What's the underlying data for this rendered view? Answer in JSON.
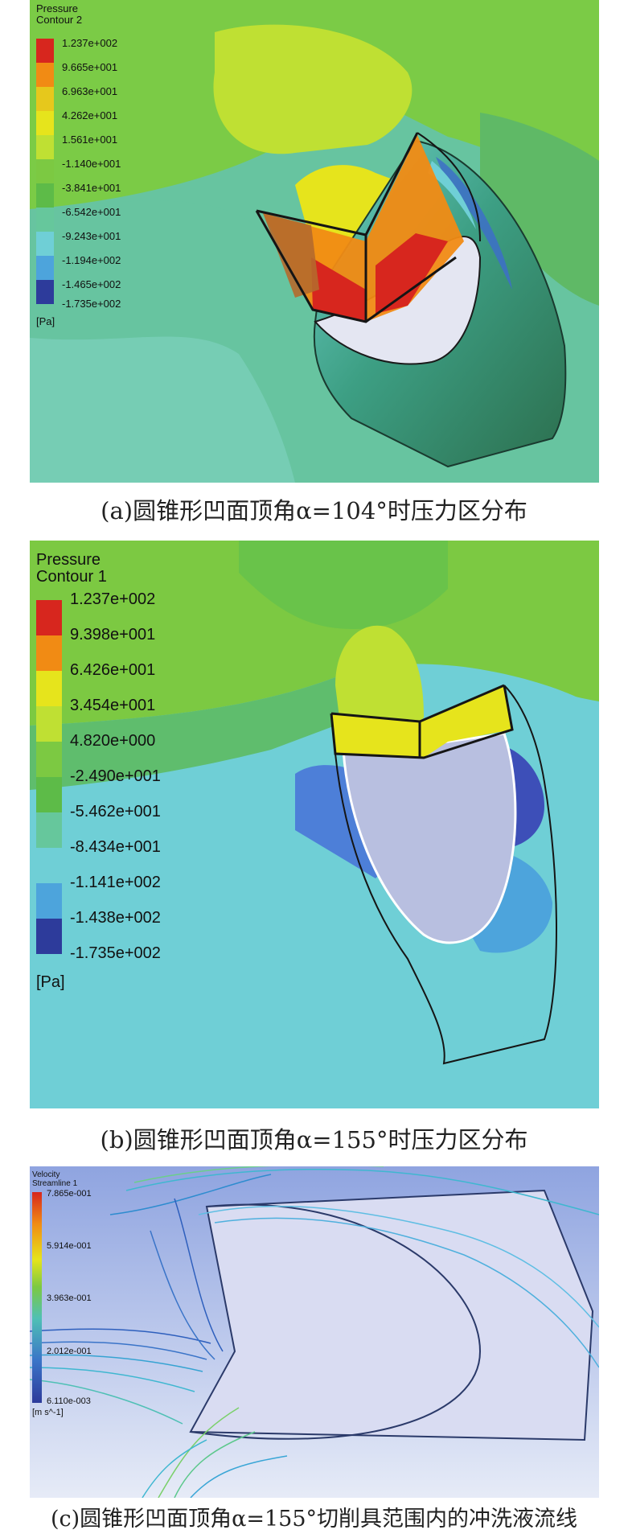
{
  "figures": [
    {
      "id": "a",
      "legend_title_1": "Pressure",
      "legend_title_2": "Contour 2",
      "ticks": [
        "1.237e+002",
        "9.665e+001",
        "6.963e+001",
        "4.262e+001",
        "1.561e+001",
        "-1.140e+001",
        "-3.841e+001",
        "-6.542e+001",
        "-9.243e+001",
        "-1.194e+002",
        "-1.465e+002",
        "-1.735e+002"
      ],
      "unit": "[Pa]",
      "caption": "(a)圆锥形凹面顶角α=104°时压力区分布"
    },
    {
      "id": "b",
      "legend_title_1": "Pressure",
      "legend_title_2": "Contour 1",
      "ticks": [
        "1.237e+002",
        "9.398e+001",
        "6.426e+001",
        "3.454e+001",
        "4.820e+000",
        "-2.490e+001",
        "-5.462e+001",
        "-8.434e+001",
        "-1.141e+002",
        "-1.438e+002",
        "-1.735e+002"
      ],
      "unit": "[Pa]",
      "caption": "(b)圆锥形凹面顶角α=155°时压力区分布"
    },
    {
      "id": "c",
      "legend_title_1": "Velocity",
      "legend_title_2": "Streamline 1",
      "ticks": [
        "7.865e-001",
        "5.914e-001",
        "3.963e-001",
        "2.012e-001",
        "6.110e-003"
      ],
      "unit": "[m s^-1]",
      "caption": "(c)圆锥形凹面顶角α=155°切削具范围内的冲洗液流线"
    }
  ],
  "colors": {
    "red": "#d7261e",
    "orange": "#f18b14",
    "yellow": "#e6e41c",
    "yellowgreen": "#bfe033",
    "green": "#7cc942",
    "green2": "#5dbb48",
    "teal": "#66c79c",
    "cyan": "#6fcfd6",
    "lightblue": "#4da4dc",
    "blue": "#3d6fc8",
    "navy": "#2d3b9b",
    "background_c": "#9fb2e6"
  }
}
